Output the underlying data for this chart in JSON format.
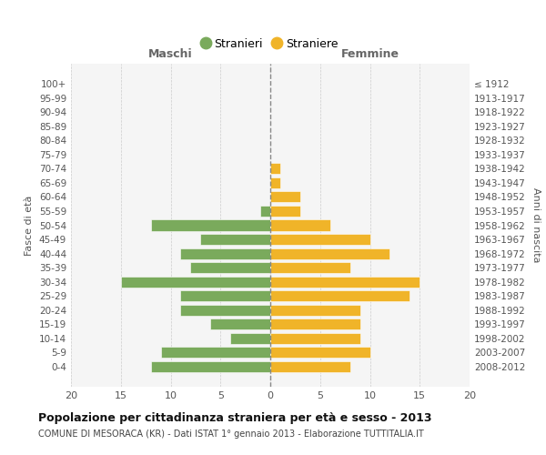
{
  "age_groups": [
    "100+",
    "95-99",
    "90-94",
    "85-89",
    "80-84",
    "75-79",
    "70-74",
    "65-69",
    "60-64",
    "55-59",
    "50-54",
    "45-49",
    "40-44",
    "35-39",
    "30-34",
    "25-29",
    "20-24",
    "15-19",
    "10-14",
    "5-9",
    "0-4"
  ],
  "birth_years": [
    "≤ 1912",
    "1913-1917",
    "1918-1922",
    "1923-1927",
    "1928-1932",
    "1933-1937",
    "1938-1942",
    "1943-1947",
    "1948-1952",
    "1953-1957",
    "1958-1962",
    "1963-1967",
    "1968-1972",
    "1973-1977",
    "1978-1982",
    "1983-1987",
    "1988-1992",
    "1993-1997",
    "1998-2002",
    "2003-2007",
    "2008-2012"
  ],
  "maschi": [
    0,
    0,
    0,
    0,
    0,
    0,
    0,
    0,
    0,
    1,
    12,
    7,
    9,
    8,
    15,
    9,
    9,
    6,
    4,
    11,
    12
  ],
  "femmine": [
    0,
    0,
    0,
    0,
    0,
    0,
    1,
    1,
    3,
    3,
    6,
    10,
    12,
    8,
    15,
    14,
    9,
    9,
    9,
    10,
    8
  ],
  "color_maschi": "#7aaa5c",
  "color_femmine": "#f0b429",
  "xlim": 20,
  "title": "Popolazione per cittadinanza straniera per età e sesso - 2013",
  "subtitle": "COMUNE DI MESORACA (KR) - Dati ISTAT 1° gennaio 2013 - Elaborazione TUTTITALIA.IT",
  "label_maschi": "Stranieri",
  "label_femmine": "Straniere",
  "xlabel_left": "Maschi",
  "xlabel_right": "Femmine",
  "ylabel_left": "Fasce di età",
  "ylabel_right": "Anni di nascita",
  "bg_color": "#f5f5f5",
  "grid_color": "#cccccc"
}
